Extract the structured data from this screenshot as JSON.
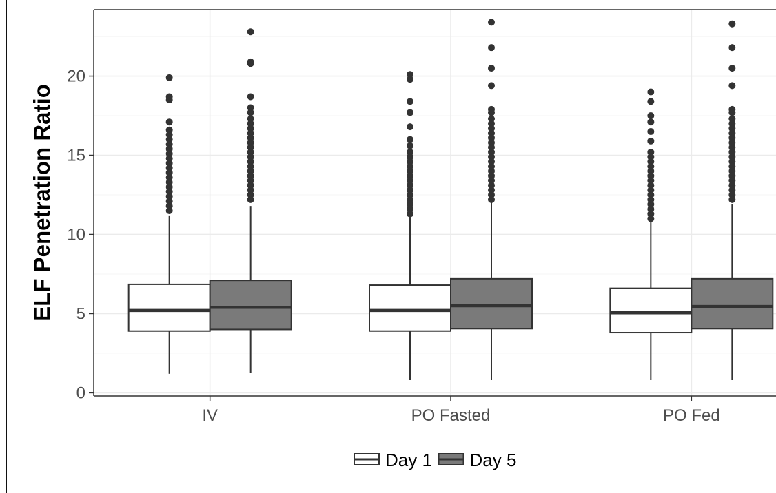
{
  "chart_data": {
    "type": "boxplot",
    "title": "",
    "xlabel": "",
    "ylabel": "ELF Penetration Ratio",
    "ylim": [
      -0.2,
      24.2
    ],
    "y_ticks": [
      0,
      5,
      10,
      15,
      20
    ],
    "grid": true,
    "categories": [
      "IV",
      "PO Fasted",
      "PO Fed"
    ],
    "legend": {
      "position": "bottom",
      "entries": [
        "Day 1",
        "Day 5"
      ]
    },
    "colors": {
      "Day 1": "#ffffff",
      "Day 5": "#7a7a7a",
      "stroke": "#333333",
      "grid": "#ebebeb"
    },
    "series": [
      {
        "name": "Day 1",
        "boxes": [
          {
            "category": "IV",
            "whisker_low": 1.2,
            "q1": 3.9,
            "median": 5.2,
            "q3": 6.85,
            "whisker_high": 11.2,
            "outliers": [
              19.9,
              18.7,
              18.5,
              17.1,
              16.6,
              16.3,
              16.0,
              15.7,
              15.4,
              15.1,
              14.8,
              14.5,
              14.2,
              13.9,
              13.6,
              13.3,
              13.0,
              12.7,
              12.4,
              12.1,
              11.8,
              11.5
            ]
          },
          {
            "category": "PO Fasted",
            "whisker_low": 0.8,
            "q1": 3.9,
            "median": 5.2,
            "q3": 6.8,
            "whisker_high": 11.1,
            "outliers": [
              20.1,
              19.8,
              18.4,
              17.7,
              16.8,
              16.0,
              15.6,
              15.2,
              14.9,
              14.6,
              14.3,
              14.0,
              13.7,
              13.4,
              13.1,
              12.8,
              12.5,
              12.2,
              11.9,
              11.6,
              11.3
            ]
          },
          {
            "category": "PO Fed",
            "whisker_low": 0.8,
            "q1": 3.8,
            "median": 5.05,
            "q3": 6.6,
            "whisker_high": 10.8,
            "outliers": [
              19.0,
              18.4,
              17.5,
              17.1,
              16.5,
              15.9,
              15.2,
              14.9,
              14.6,
              14.3,
              14.0,
              13.7,
              13.4,
              13.1,
              12.8,
              12.5,
              12.2,
              11.9,
              11.6,
              11.3,
              11.0
            ]
          }
        ]
      },
      {
        "name": "Day 5",
        "boxes": [
          {
            "category": "IV",
            "whisker_low": 1.25,
            "q1": 4.0,
            "median": 5.4,
            "q3": 7.1,
            "whisker_high": 11.8,
            "outliers": [
              22.8,
              20.9,
              20.8,
              18.7,
              18.0,
              17.7,
              17.3,
              17.0,
              16.7,
              16.4,
              16.1,
              15.8,
              15.5,
              15.2,
              14.9,
              14.6,
              14.3,
              14.0,
              13.7,
              13.4,
              13.1,
              12.8,
              12.5,
              12.2
            ]
          },
          {
            "category": "PO Fasted",
            "whisker_low": 0.8,
            "q1": 4.05,
            "median": 5.5,
            "q3": 7.2,
            "whisker_high": 12.0,
            "outliers": [
              23.4,
              21.8,
              20.5,
              19.4,
              17.9,
              17.7,
              17.3,
              17.0,
              16.7,
              16.4,
              16.1,
              15.8,
              15.5,
              15.2,
              14.9,
              14.6,
              14.3,
              14.0,
              13.7,
              13.4,
              13.1,
              12.8,
              12.5,
              12.2
            ]
          },
          {
            "category": "PO Fed",
            "whisker_low": 0.8,
            "q1": 4.05,
            "median": 5.45,
            "q3": 7.2,
            "whisker_high": 11.9,
            "outliers": [
              23.3,
              21.8,
              20.5,
              19.4,
              17.9,
              17.7,
              17.3,
              17.0,
              16.7,
              16.4,
              16.1,
              15.8,
              15.5,
              15.2,
              14.9,
              14.6,
              14.3,
              14.0,
              13.7,
              13.4,
              13.1,
              12.8,
              12.5,
              12.2
            ]
          }
        ]
      }
    ]
  }
}
